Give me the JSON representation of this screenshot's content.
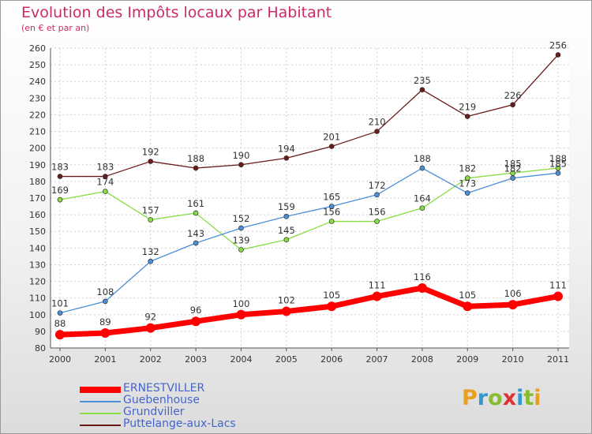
{
  "title": "Evolution des Impôts locaux par Habitant",
  "subtitle": "(en € et par an)",
  "chart_data": {
    "type": "line",
    "title": "Evolution des Impôts locaux par Habitant",
    "subtitle": "(en € et par an)",
    "x": [
      "2000",
      "2001",
      "2002",
      "2003",
      "2004",
      "2005",
      "2006",
      "2007",
      "2008",
      "2009",
      "2010",
      "2011"
    ],
    "ylim": [
      80,
      260
    ],
    "yticks": [
      80,
      90,
      100,
      110,
      120,
      130,
      140,
      150,
      160,
      170,
      180,
      190,
      200,
      210,
      220,
      230,
      240,
      250,
      260
    ],
    "grid": true,
    "legend": "bottom-left",
    "series": [
      {
        "name": "ERNESTVILLER",
        "color": "#ff0000",
        "values": [
          88,
          89,
          92,
          96,
          100,
          102,
          105,
          111,
          116,
          105,
          106,
          111
        ]
      },
      {
        "name": "Guebenhouse",
        "color": "#4a90d9",
        "values": [
          101,
          108,
          132,
          143,
          152,
          159,
          165,
          172,
          188,
          173,
          182,
          185
        ]
      },
      {
        "name": "Grundviller",
        "color": "#88dd44",
        "values": [
          169,
          174,
          157,
          161,
          139,
          145,
          156,
          156,
          164,
          182,
          185,
          188
        ]
      },
      {
        "name": "Puttelange-aux-Lacs",
        "color": "#6b1a1a",
        "values": [
          183,
          183,
          192,
          188,
          190,
          194,
          201,
          210,
          235,
          219,
          226,
          256
        ]
      }
    ]
  },
  "logo": {
    "letters": [
      "P",
      "r",
      "o",
      "x",
      "i",
      "t",
      "i"
    ],
    "colors": [
      "#e8a020",
      "#3399cc",
      "#88bb33",
      "#dd3333",
      "#3399cc",
      "#88bb33",
      "#e8a020"
    ]
  }
}
